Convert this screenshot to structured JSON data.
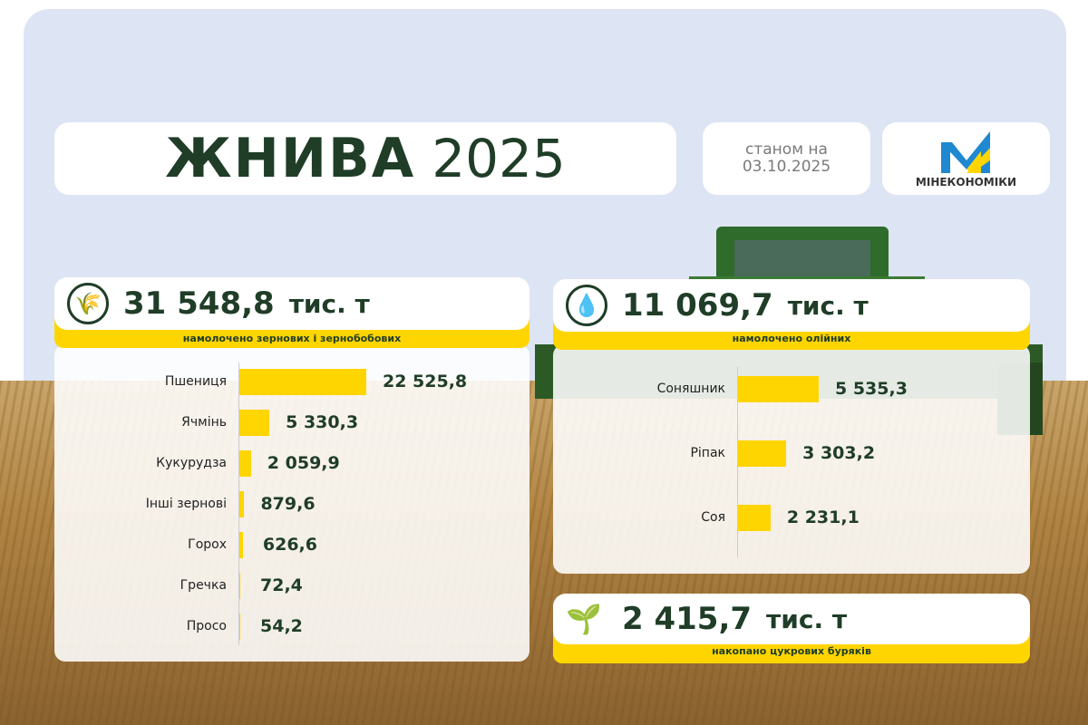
{
  "header": {
    "title_bold": "ЖНИВА",
    "title_year": "2025",
    "date_label": "станом на",
    "date": "03.10.2025",
    "logo_text": "МІНЕКОНОМІКИ"
  },
  "colors": {
    "accent": "#ffd500",
    "text": "#1f3d27",
    "sky": "#dde4f3",
    "logo_blue": "#1e88d0",
    "logo_yellow": "#ffd500"
  },
  "grain": {
    "icon": "wheat-icon",
    "total": "31 548,8",
    "unit": "тис. т",
    "caption": "намолочено зернових і зернобобових"
  },
  "oil": {
    "icon": "oil-drop-icon",
    "total": "11 069,7",
    "unit": "тис. т",
    "caption": "намолочено олійних"
  },
  "beet": {
    "icon": "sugar-beet-icon",
    "total": "2 415,7",
    "unit": "тис. т",
    "caption": "накопано цукрових буряків"
  },
  "chart_data": [
    {
      "type": "bar",
      "orientation": "horizontal",
      "categories": [
        "Пшениця",
        "Ячмінь",
        "Кукурудза",
        "Інші зернові",
        "Горох",
        "Гречка",
        "Просо"
      ],
      "values": [
        22525.8,
        5330.3,
        2059.9,
        879.6,
        626.6,
        72.4,
        54.2
      ],
      "labels": [
        "22 525,8",
        "5 330,3",
        "2 059,9",
        "879,6",
        "626,6",
        "72,4",
        "54,2"
      ],
      "unit": "тис. т"
    },
    {
      "type": "bar",
      "orientation": "horizontal",
      "categories": [
        "Соняшник",
        "Ріпак",
        "Соя"
      ],
      "values": [
        5535.3,
        3303.2,
        2231.1
      ],
      "labels": [
        "5 535,3",
        "3 303,2",
        "2 231,1"
      ],
      "unit": "тис. т"
    }
  ]
}
